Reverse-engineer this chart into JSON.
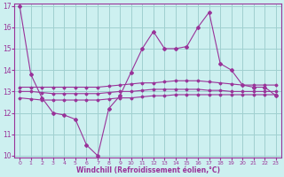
{
  "xlabel": "Windchill (Refroidissement éolien,°C)",
  "background_color": "#cdf0f0",
  "grid_color": "#a0d0d0",
  "line_color": "#993399",
  "x": [
    0,
    1,
    2,
    3,
    4,
    5,
    6,
    7,
    8,
    9,
    10,
    11,
    12,
    13,
    14,
    15,
    16,
    17,
    18,
    19,
    20,
    21,
    22,
    23
  ],
  "line1": [
    17.0,
    13.8,
    12.7,
    12.0,
    11.9,
    11.7,
    10.5,
    10.0,
    12.2,
    12.8,
    13.9,
    15.0,
    15.8,
    15.0,
    15.0,
    15.1,
    16.0,
    16.7,
    14.3,
    14.0,
    13.3,
    13.2,
    13.2,
    12.8
  ],
  "line2": [
    13.2,
    13.2,
    13.2,
    13.2,
    13.2,
    13.2,
    13.2,
    13.2,
    13.25,
    13.3,
    13.35,
    13.4,
    13.4,
    13.45,
    13.5,
    13.5,
    13.5,
    13.45,
    13.4,
    13.35,
    13.3,
    13.3,
    13.3,
    13.3
  ],
  "line3": [
    13.0,
    13.0,
    12.95,
    12.9,
    12.9,
    12.9,
    12.9,
    12.9,
    12.95,
    13.0,
    13.0,
    13.05,
    13.1,
    13.1,
    13.1,
    13.1,
    13.1,
    13.05,
    13.05,
    13.0,
    13.0,
    13.0,
    13.0,
    13.0
  ],
  "line4": [
    12.7,
    12.65,
    12.6,
    12.6,
    12.6,
    12.6,
    12.6,
    12.6,
    12.65,
    12.7,
    12.7,
    12.75,
    12.8,
    12.8,
    12.85,
    12.85,
    12.85,
    12.85,
    12.85,
    12.85,
    12.85,
    12.85,
    12.85,
    12.85
  ],
  "ylim": [
    10,
    17
  ],
  "xlim": [
    -0.5,
    23.5
  ],
  "yticks": [
    10,
    11,
    12,
    13,
    14,
    15,
    16,
    17
  ],
  "xticks": [
    0,
    1,
    2,
    3,
    4,
    5,
    6,
    7,
    8,
    9,
    10,
    11,
    12,
    13,
    14,
    15,
    16,
    17,
    18,
    19,
    20,
    21,
    22,
    23
  ]
}
